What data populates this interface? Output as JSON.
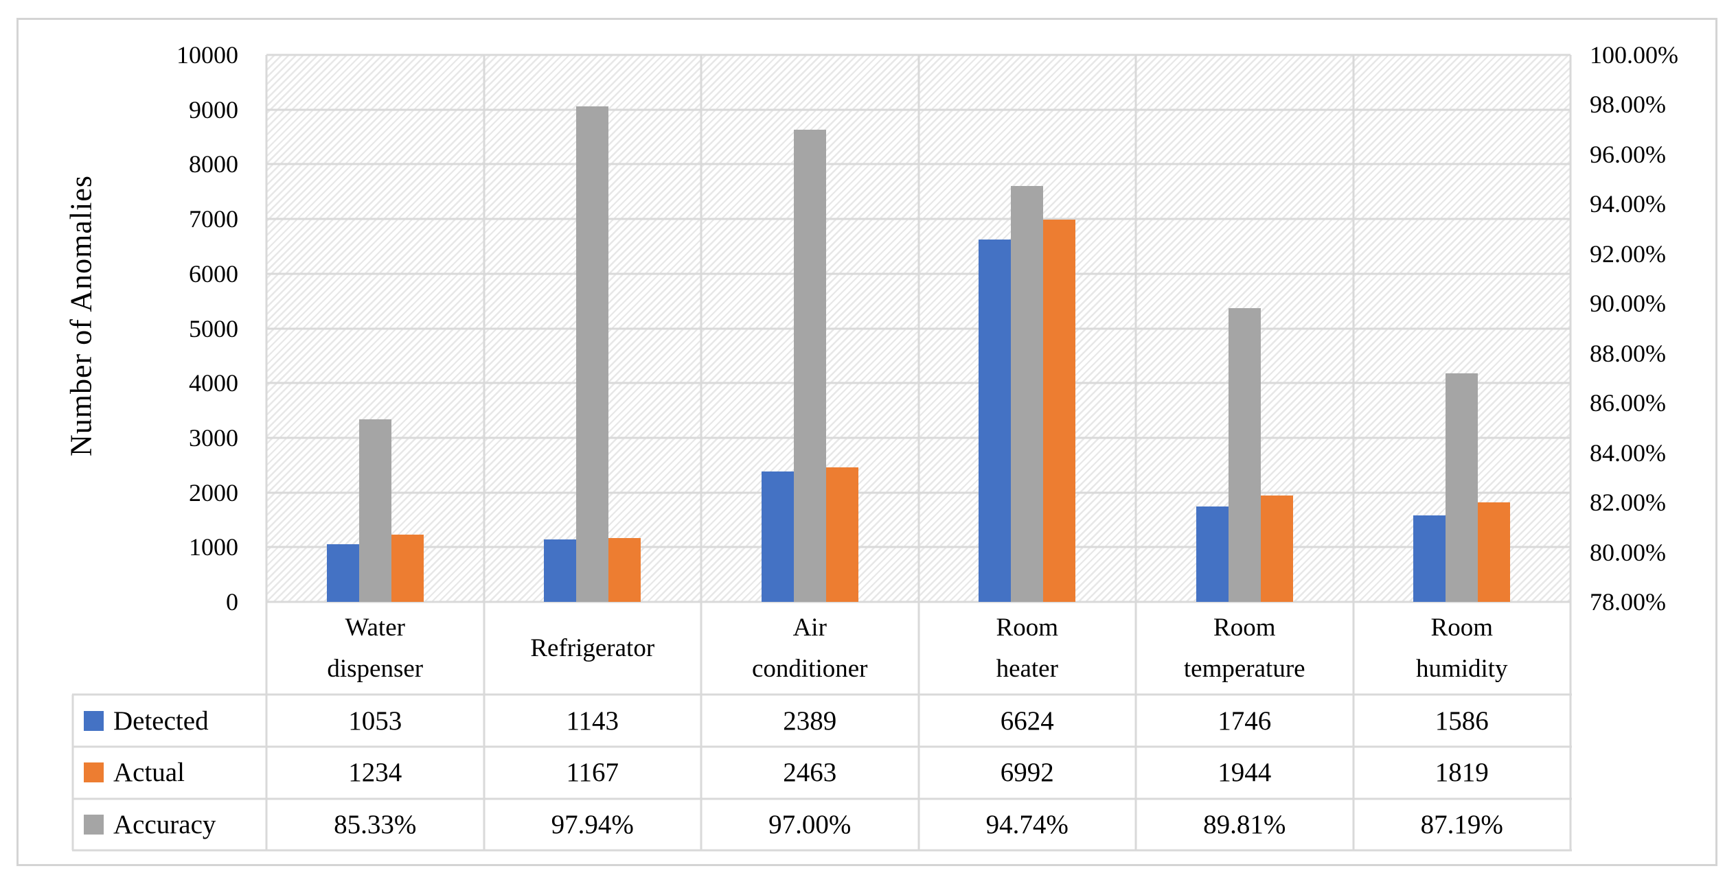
{
  "chart_data": {
    "type": "bar",
    "title": "",
    "xlabel": "",
    "ylabel": "Number of Anomalies",
    "categories": [
      "Water dispenser",
      "Refrigerator",
      "Air conditioner",
      "Room heater",
      "Room temperature",
      "Room humidity"
    ],
    "category_label_lines": [
      [
        "Water",
        "dispenser"
      ],
      [
        "Refrigerator"
      ],
      [
        "Air",
        "conditioner"
      ],
      [
        "Room",
        "heater"
      ],
      [
        "Room",
        "temperature"
      ],
      [
        "Room",
        "humidity"
      ]
    ],
    "series": [
      {
        "name": "Detected",
        "axis": "left",
        "color": "#4472C4",
        "values": [
          1053,
          1143,
          2389,
          6624,
          1746,
          1586
        ]
      },
      {
        "name": "Accuracy",
        "axis": "right",
        "color": "#A5A5A5",
        "values": [
          85.33,
          97.94,
          97.0,
          94.74,
          89.81,
          87.19
        ]
      },
      {
        "name": "Actual",
        "axis": "left",
        "color": "#ED7D31",
        "values": [
          1234,
          1167,
          2463,
          6992,
          1944,
          1819
        ]
      }
    ],
    "left_axis": {
      "min": 0,
      "max": 10000,
      "step": 1000,
      "ticks": [
        "10000",
        "9000",
        "8000",
        "7000",
        "6000",
        "5000",
        "4000",
        "3000",
        "2000",
        "1000",
        "0"
      ]
    },
    "right_axis": {
      "min": 78,
      "max": 100,
      "step": 2,
      "ticks": [
        "100.00%",
        "98.00%",
        "96.00%",
        "94.00%",
        "92.00%",
        "90.00%",
        "88.00%",
        "86.00%",
        "84.00%",
        "82.00%",
        "80.00%",
        "78.00%"
      ]
    },
    "grid": true,
    "plot_background": "light-diagonal-hatch",
    "legend_position": "data-table-left"
  },
  "table": {
    "rows": [
      {
        "label": "Detected",
        "key_color": "#4472C4",
        "values": [
          "1053",
          "1143",
          "2389",
          "6624",
          "1746",
          "1586"
        ]
      },
      {
        "label": "Actual",
        "key_color": "#ED7D31",
        "values": [
          "1234",
          "1167",
          "2463",
          "6992",
          "1944",
          "1819"
        ]
      },
      {
        "label": "Accuracy",
        "key_color": "#A5A5A5",
        "values": [
          "85.33%",
          "97.94%",
          "97.00%",
          "94.74%",
          "89.81%",
          "87.19%"
        ]
      }
    ]
  },
  "colors": {
    "grid": "#D9D9D9",
    "frame_border": "#D4D4D4",
    "hatch": "#E7E7E7",
    "text": "#000000",
    "background": "#FFFFFF"
  }
}
